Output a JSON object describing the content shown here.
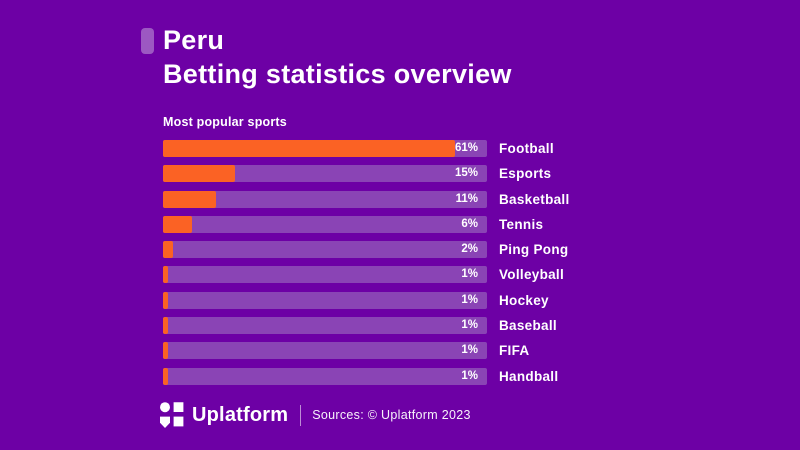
{
  "page": {
    "background_color": "#6D00A5",
    "accent_color": "#9C58C2",
    "bar_color": "#FB6224",
    "track_color": "#8A44B5",
    "text_color": "#FFFFFF"
  },
  "header": {
    "title_line1": "Peru",
    "title_line2": "Betting statistics overview"
  },
  "chart_data": {
    "type": "bar",
    "orientation": "horizontal",
    "title": "Most popular sports",
    "categories": [
      "Football",
      "Esports",
      "Basketball",
      "Tennis",
      "Ping Pong",
      "Volleyball",
      "Hockey",
      "Baseball",
      "FIFA",
      "Handball"
    ],
    "values": [
      61,
      15,
      11,
      6,
      2,
      1,
      1,
      1,
      1,
      1
    ],
    "value_labels": [
      "61%",
      "15%",
      "11%",
      "6%",
      "2%",
      "1%",
      "1%",
      "1%",
      "1%",
      "1%"
    ],
    "xlim": [
      0,
      67.7
    ],
    "grid": false,
    "legend": "none",
    "value_label_position": "inside-track-right",
    "category_label_position": "right-of-track"
  },
  "footer": {
    "logo_icon": "uplatform-logo",
    "brand": "Uplatform",
    "sources": "Sources: © Uplatform 2023"
  }
}
